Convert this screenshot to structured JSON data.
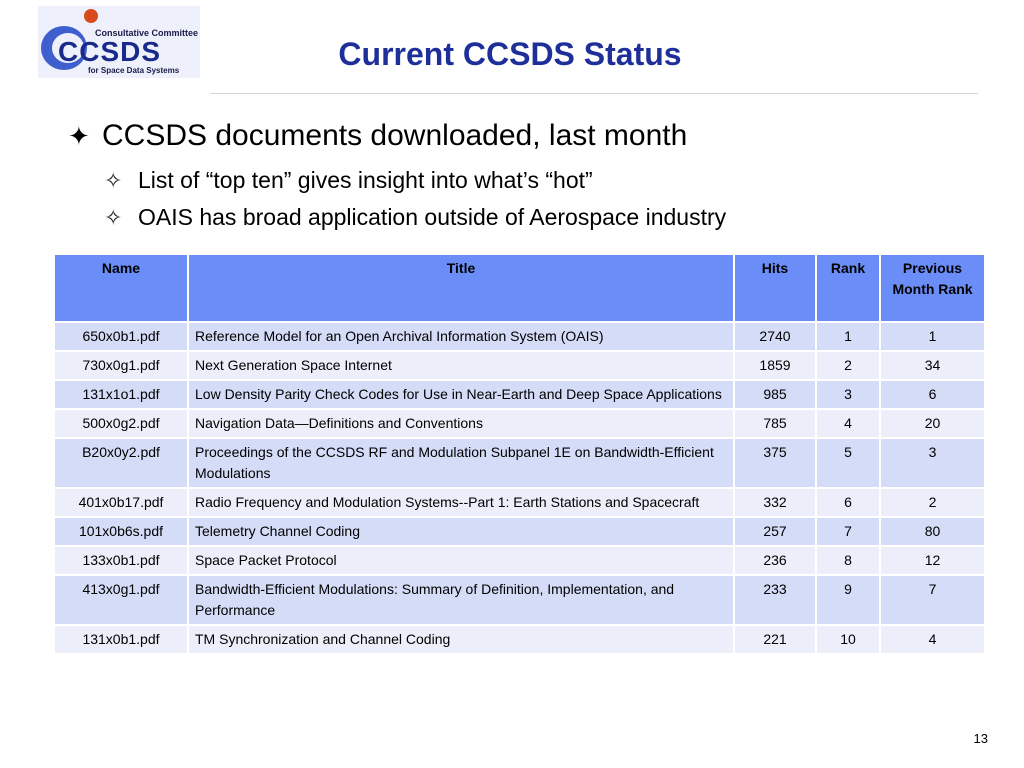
{
  "logo": {
    "line1": "Consultative Committee",
    "acronym": "CCSDS",
    "line2": "for Space Data Systems",
    "colors": {
      "blue": "#2b4fc9",
      "dark": "#1a1a4a",
      "orange": "#d94a1c"
    }
  },
  "title": "Current CCSDS Status",
  "bullets": {
    "main": "CCSDS documents downloaded, last month",
    "sub": [
      "List of “top ten” gives insight into what’s “hot”",
      "OAIS has broad application outside of Aerospace industry"
    ]
  },
  "table": {
    "headers": {
      "name": "Name",
      "title": "Title",
      "hits": "Hits",
      "rank": "Rank",
      "prev": "Previous Month Rank"
    },
    "rows": [
      {
        "name": "650x0b1.pdf",
        "title": "Reference Model for an Open Archival Information System (OAIS)",
        "hits": "2740",
        "rank": "1",
        "prev": "1"
      },
      {
        "name": "730x0g1.pdf",
        "title": "Next Generation Space Internet",
        "hits": "1859",
        "rank": "2",
        "prev": "34"
      },
      {
        "name": "131x1o1.pdf",
        "title": "Low Density Parity Check Codes for Use in Near-Earth and Deep Space Applications",
        "hits": "985",
        "rank": "3",
        "prev": "6"
      },
      {
        "name": "500x0g2.pdf",
        "title": "Navigation Data—Definitions and Conventions",
        "hits": "785",
        "rank": "4",
        "prev": "20"
      },
      {
        "name": "B20x0y2.pdf",
        "title": "Proceedings of the CCSDS RF and Modulation Subpanel 1E on Bandwidth-Efficient Modulations",
        "hits": "375",
        "rank": "5",
        "prev": "3"
      },
      {
        "name": "401x0b17.pdf",
        "title": "Radio Frequency and Modulation Systems--Part 1: Earth Stations and Spacecraft",
        "hits": "332",
        "rank": "6",
        "prev": "2"
      },
      {
        "name": "101x0b6s.pdf",
        "title": "Telemetry Channel Coding",
        "hits": "257",
        "rank": "7",
        "prev": "80"
      },
      {
        "name": "133x0b1.pdf",
        "title": "Space Packet Protocol",
        "hits": "236",
        "rank": "8",
        "prev": "12"
      },
      {
        "name": "413x0g1.pdf",
        "title": "Bandwidth-Efficient Modulations: Summary of Definition, Implementation, and Performance",
        "hits": "233",
        "rank": "9",
        "prev": "7"
      },
      {
        "name": "131x0b1.pdf",
        "title": "TM Synchronization and Channel Coding",
        "hits": "221",
        "rank": "10",
        "prev": "4"
      }
    ]
  },
  "page_number": "13"
}
